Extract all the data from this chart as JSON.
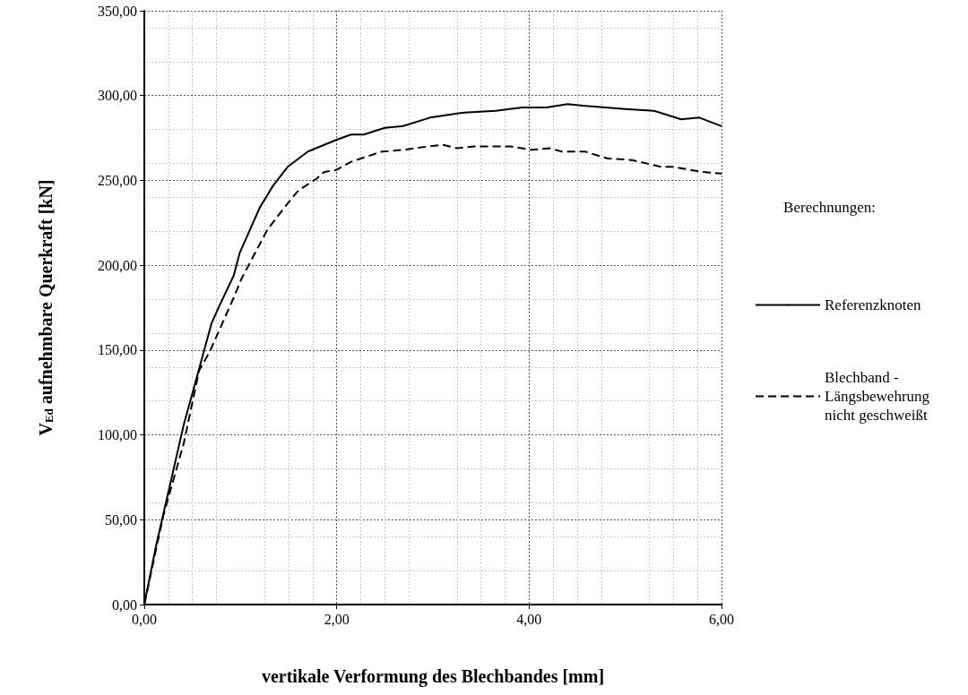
{
  "chart_data": {
    "type": "line",
    "xlabel": "vertikale Verformung des Blechbandes [mm]",
    "ylabel": "V$_{Ed}$ aufnehmbare Querkraft [kN]",
    "legend_title": "Berechnungen:",
    "legend": "right",
    "grid": true,
    "marker": "none",
    "xlim": [
      0,
      6
    ],
    "xticks": [
      {
        "value": 0,
        "label": "0,00"
      },
      {
        "value": 2,
        "label": "2,00"
      },
      {
        "value": 4,
        "label": "4,00"
      },
      {
        "value": 6,
        "label": "6,00"
      }
    ],
    "ylim": [
      0,
      350
    ],
    "yticks": [
      {
        "value": 0,
        "label": "0,00"
      },
      {
        "value": 50,
        "label": "50,00"
      },
      {
        "value": 100,
        "label": "100,00"
      },
      {
        "value": 150,
        "label": "150,00"
      },
      {
        "value": 200,
        "label": "200,00"
      },
      {
        "value": 250,
        "label": "250,00"
      },
      {
        "value": 300,
        "label": "300,00"
      },
      {
        "value": 350,
        "label": "350,00"
      }
    ],
    "series": [
      {
        "name": "Referenzknoten",
        "color": "#000000",
        "line_style": "solid",
        "x": [
          0,
          0.12,
          0.41,
          0.57,
          0.7,
          0.78,
          0.93,
          0.99,
          1.2,
          1.34,
          1.49,
          1.7,
          2.0,
          2.15,
          2.28,
          2.5,
          2.69,
          2.97,
          3.32,
          3.65,
          3.93,
          4.18,
          4.4,
          4.56,
          5.0,
          5.3,
          5.58,
          5.77,
          6.0
        ],
        "values": [
          0,
          34,
          106,
          139,
          166,
          176,
          194,
          207,
          234,
          247,
          258,
          267,
          274,
          277,
          277,
          281,
          282,
          287,
          290,
          291,
          293,
          293,
          295,
          294,
          292,
          291,
          286,
          287,
          282
        ]
      },
      {
        "name": "Blechband - Längsbewehrung nicht geschweißt",
        "color": "#000000",
        "line_style": "dashed",
        "x": [
          0,
          0.12,
          0.2,
          0.41,
          0.57,
          0.68,
          0.93,
          1.01,
          1.28,
          1.47,
          1.6,
          1.79,
          1.87,
          1.99,
          2.15,
          2.47,
          2.69,
          2.95,
          3.1,
          3.25,
          3.43,
          3.81,
          4.03,
          4.21,
          4.34,
          4.58,
          4.81,
          5.07,
          5.37,
          5.49,
          5.8,
          6.0
        ],
        "values": [
          0,
          32,
          53,
          95,
          138,
          149,
          181,
          192,
          221,
          235,
          244,
          251,
          255,
          256,
          261,
          267,
          268,
          270,
          271,
          269,
          270,
          270,
          268,
          269,
          267,
          267,
          263,
          262,
          258,
          258,
          255,
          254
        ]
      }
    ]
  }
}
